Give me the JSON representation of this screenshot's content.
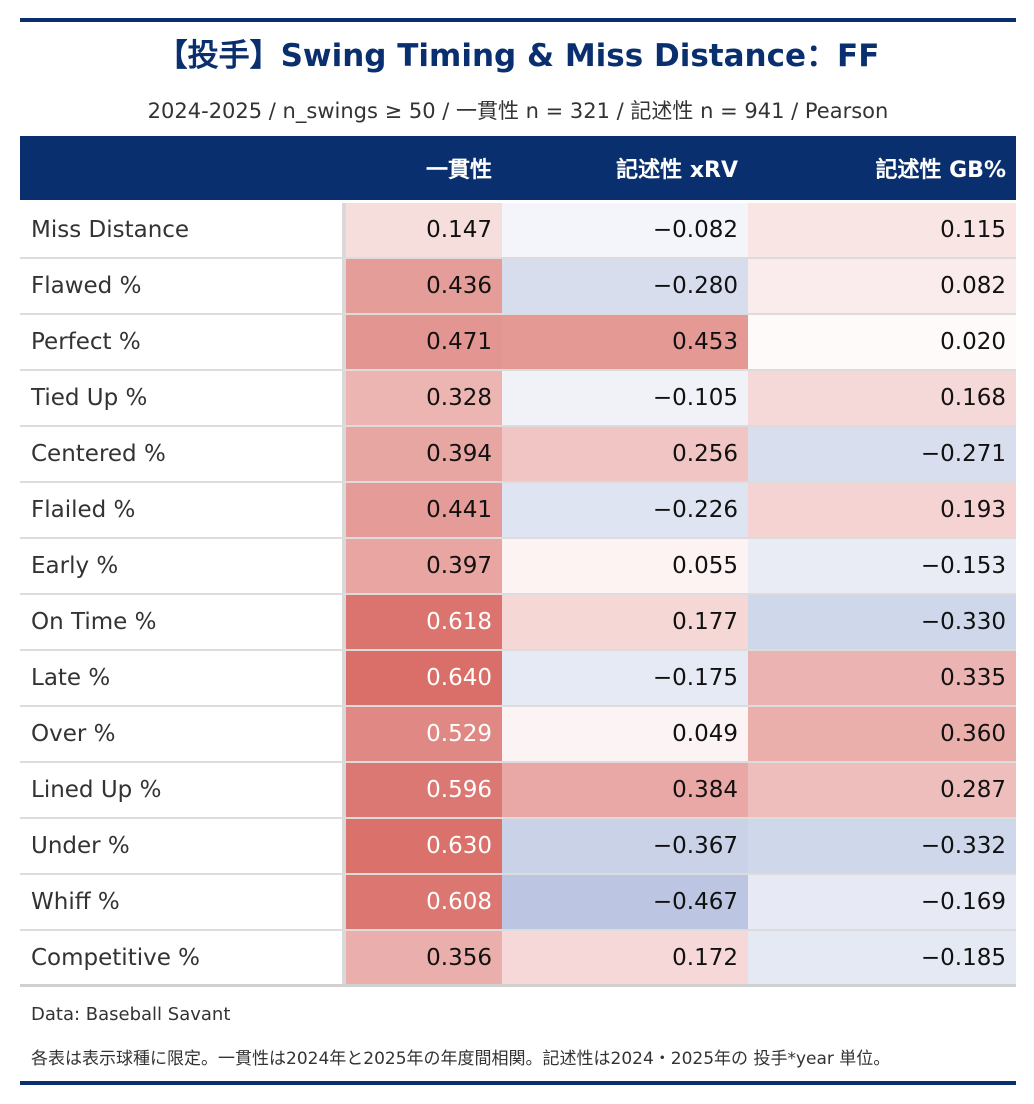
{
  "title": "【投手】Swing Timing & Miss Distance：FF",
  "subtitle": "2024-2025 / n_swings ≥ 50 / 一貫性 n = 321 / 記述性 n = 941 / Pearson",
  "colors": {
    "navy": "#0a2f6e",
    "red_max": "#d6615b",
    "blue_max": "#9aaad3",
    "white": "#ffffff"
  },
  "chart_data": {
    "type": "table",
    "columns": [
      "一貫性",
      "記述性 xRV",
      "記述性 GB%"
    ],
    "rows": [
      {
        "label": "Miss Distance",
        "values": [
          "0.147",
          "−0.082",
          "0.115"
        ],
        "numbers": [
          0.147,
          -0.082,
          0.115
        ]
      },
      {
        "label": "Flawed %",
        "values": [
          "0.436",
          "−0.280",
          "0.082"
        ],
        "numbers": [
          0.436,
          -0.28,
          0.082
        ]
      },
      {
        "label": "Perfect %",
        "values": [
          "0.471",
          "0.453",
          "0.020"
        ],
        "numbers": [
          0.471,
          0.453,
          0.02
        ]
      },
      {
        "label": "Tied Up %",
        "values": [
          "0.328",
          "−0.105",
          "0.168"
        ],
        "numbers": [
          0.328,
          -0.105,
          0.168
        ]
      },
      {
        "label": "Centered %",
        "values": [
          "0.394",
          "0.256",
          "−0.271"
        ],
        "numbers": [
          0.394,
          0.256,
          -0.271
        ]
      },
      {
        "label": "Flailed %",
        "values": [
          "0.441",
          "−0.226",
          "0.193"
        ],
        "numbers": [
          0.441,
          -0.226,
          0.193
        ]
      },
      {
        "label": "Early %",
        "values": [
          "0.397",
          "0.055",
          "−0.153"
        ],
        "numbers": [
          0.397,
          0.055,
          -0.153
        ]
      },
      {
        "label": "On Time %",
        "values": [
          "0.618",
          "0.177",
          "−0.330"
        ],
        "numbers": [
          0.618,
          0.177,
          -0.33
        ]
      },
      {
        "label": "Late %",
        "values": [
          "0.640",
          "−0.175",
          "0.335"
        ],
        "numbers": [
          0.64,
          -0.175,
          0.335
        ]
      },
      {
        "label": "Over %",
        "values": [
          "0.529",
          "0.049",
          "0.360"
        ],
        "numbers": [
          0.529,
          0.049,
          0.36
        ]
      },
      {
        "label": "Lined Up %",
        "values": [
          "0.596",
          "0.384",
          "0.287"
        ],
        "numbers": [
          0.596,
          0.384,
          0.287
        ]
      },
      {
        "label": "Under %",
        "values": [
          "0.630",
          "−0.367",
          "−0.332"
        ],
        "numbers": [
          0.63,
          -0.367,
          -0.332
        ]
      },
      {
        "label": "Whiff %",
        "values": [
          "0.608",
          "−0.467",
          "−0.169"
        ],
        "numbers": [
          0.608,
          -0.467,
          -0.169
        ]
      },
      {
        "label": "Competitive %",
        "values": [
          "0.356",
          "0.172",
          "−0.185"
        ],
        "numbers": [
          0.356,
          0.172,
          -0.185
        ]
      }
    ],
    "color_scale": {
      "min": -0.7,
      "max": 0.7
    }
  },
  "footer": {
    "source": "Data: Baseball Savant",
    "note": "各表は表示球種に限定。一貫性は2024年と2025年の年度間相関。記述性は2024・2025年の 投手*year 単位。"
  }
}
